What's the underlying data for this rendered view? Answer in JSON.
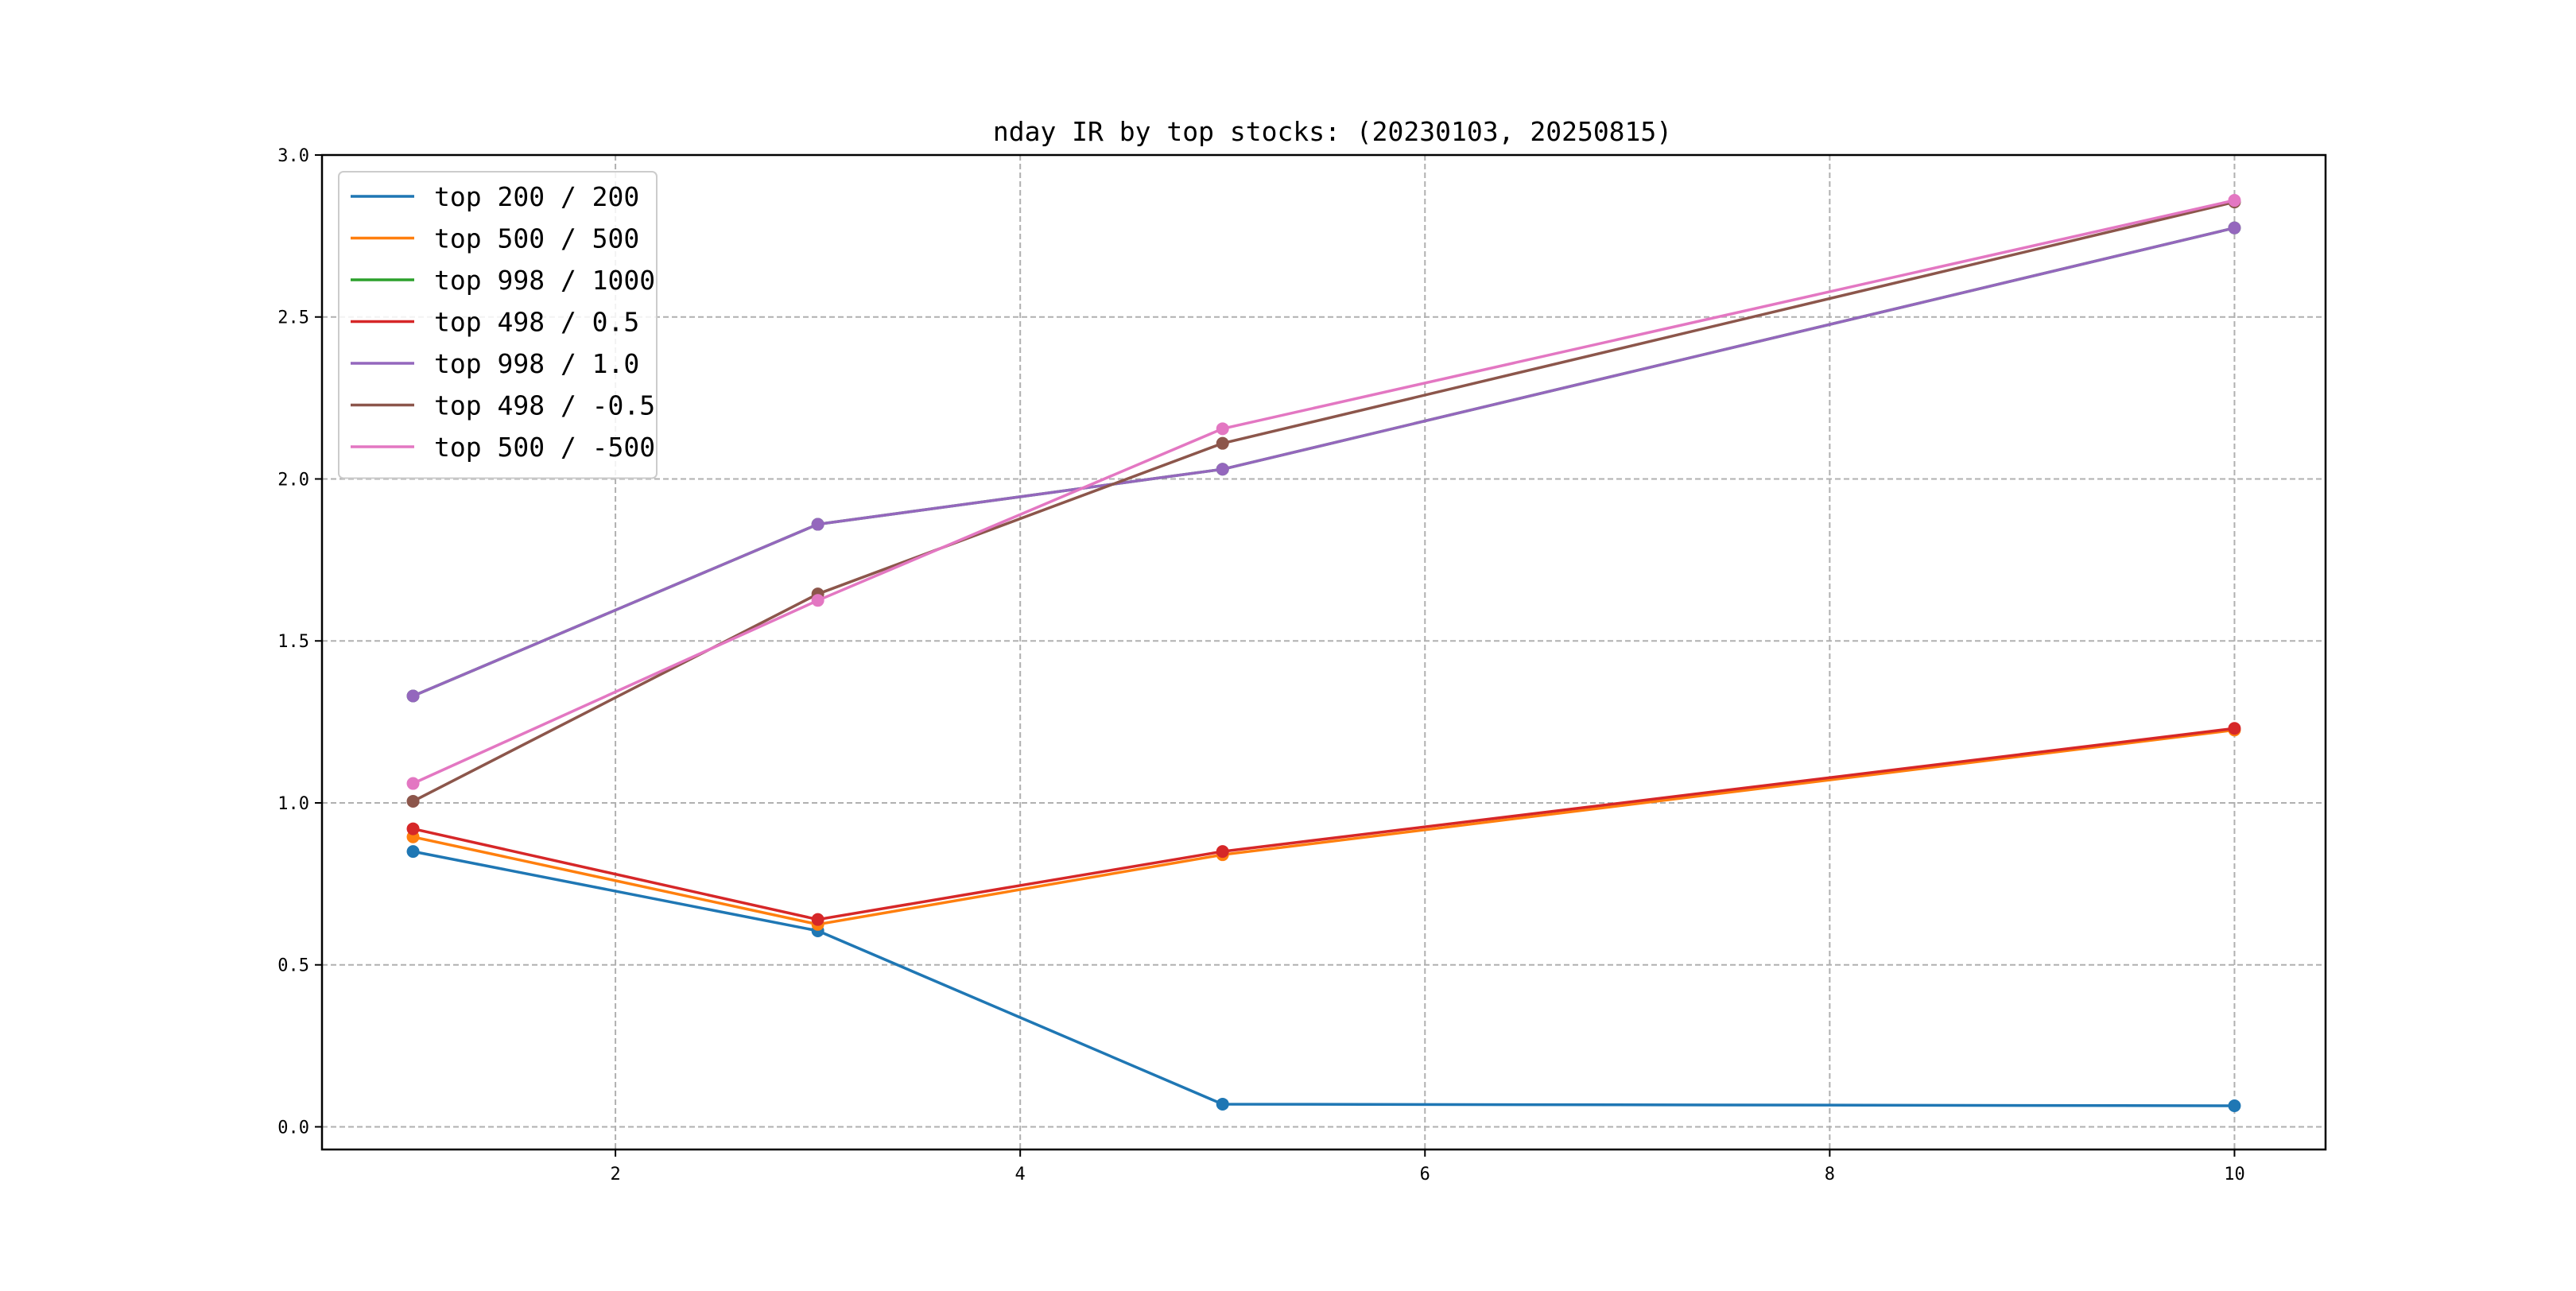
{
  "chart_data": {
    "type": "line",
    "title": "nday IR by top stocks: (20230103, 20250815)",
    "xlabel": "",
    "ylabel": "",
    "x": [
      1,
      3,
      5,
      10
    ],
    "xlim": [
      0.55,
      10.45
    ],
    "ylim": [
      -0.07,
      3.0
    ],
    "xticks": [
      2,
      4,
      6,
      8,
      10
    ],
    "xtick_labels": [
      "2",
      "4",
      "6",
      "8",
      "10"
    ],
    "yticks": [
      0.0,
      0.5,
      1.0,
      1.5,
      2.0,
      2.5,
      3.0
    ],
    "ytick_labels": [
      "0.0",
      "0.5",
      "1.0",
      "1.5",
      "2.0",
      "2.5",
      "3.0"
    ],
    "grid": true,
    "legend_position": "top-left",
    "markers": true,
    "series": [
      {
        "name": "top 200 / 200",
        "color": "#1f77b4",
        "values": [
          0.85,
          0.605,
          0.07,
          0.065
        ]
      },
      {
        "name": "top 500 / 500",
        "color": "#ff7f0e",
        "values": [
          0.895,
          0.625,
          0.84,
          1.225
        ]
      },
      {
        "name": "top 998 / 1000",
        "color": "#2ca02c",
        "values": [
          1.33,
          1.86,
          2.03,
          2.775
        ]
      },
      {
        "name": "top 498 / 0.5",
        "color": "#d62728",
        "values": [
          0.92,
          0.64,
          0.85,
          1.23
        ]
      },
      {
        "name": "top 998 / 1.0",
        "color": "#9467bd",
        "values": [
          1.33,
          1.86,
          2.03,
          2.775
        ]
      },
      {
        "name": "top 498 / -0.5",
        "color": "#8c564b",
        "values": [
          1.005,
          1.645,
          2.11,
          2.855
        ]
      },
      {
        "name": "top 500 / -500",
        "color": "#e377c2",
        "values": [
          1.06,
          1.625,
          2.155,
          2.86
        ]
      }
    ]
  }
}
